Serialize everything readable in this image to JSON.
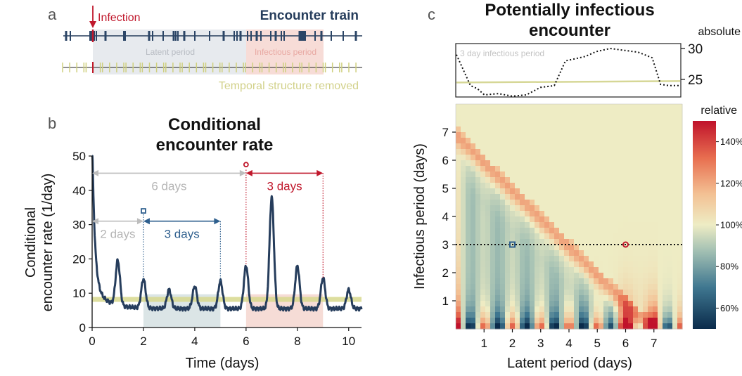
{
  "panel_a": {
    "letter": "a",
    "infection_label": "Infection",
    "train_label": "Encounter train",
    "latent_label": "Latent period",
    "infectious_label": "Infectious period",
    "removed_label": "Temporal structure removed",
    "colors": {
      "navy": "#263d5c",
      "red": "#c0182c",
      "olive": "#d6d796",
      "gray_band": "#e6e9ee",
      "pink_band": "#f6dcd8"
    }
  },
  "panel_b": {
    "letter": "b",
    "title_line1": "Conditional",
    "title_line2": "encounter rate",
    "ylabel_line1": "Conditional",
    "ylabel_line2": "encounter rate (1/day)",
    "xlabel": "Time (days)",
    "ann_6days": "6 days",
    "ann_2days": "2 days",
    "ann_3days_blue": "3 days",
    "ann_3days_red": "3 days"
  },
  "panel_c": {
    "letter": "c",
    "title_line1": "Potentially infectious",
    "title_line2": "encounter",
    "absolute_label": "absolute",
    "inset_label": "3 day infectious period",
    "relative_label": "relative",
    "xlabel": "Latent period (days)",
    "ylabel": "Infectious period (days)",
    "colorbar_ticks": [
      "140%",
      "120%",
      "100%",
      "80%",
      "60%"
    ]
  },
  "chart_data": [
    {
      "type": "line",
      "title": "Conditional encounter rate",
      "xlabel": "Time (days)",
      "ylabel": "Conditional encounter rate (1/day)",
      "xlim": [
        0,
        10.5
      ],
      "ylim": [
        0,
        50
      ],
      "x_ticks": [
        0,
        2,
        4,
        6,
        8,
        10
      ],
      "y_ticks": [
        0,
        10,
        20,
        30,
        40,
        50
      ],
      "peaks": [
        {
          "x": 0,
          "y": 50
        },
        {
          "x": 1,
          "y": 18.5
        },
        {
          "x": 2,
          "y": 14
        },
        {
          "x": 3,
          "y": 11
        },
        {
          "x": 4,
          "y": 12
        },
        {
          "x": 5,
          "y": 13.5
        },
        {
          "x": 6,
          "y": 18
        },
        {
          "x": 7,
          "y": 38
        },
        {
          "x": 8,
          "y": 18
        },
        {
          "x": 9,
          "y": 14.5
        },
        {
          "x": 10,
          "y": 11
        }
      ],
      "baseline": 5.5,
      "uniform_rate": 8.2,
      "intervals": [
        {
          "label": "6 days",
          "from": 0,
          "to": 6
        },
        {
          "label": "2 days",
          "from": 0,
          "to": 2
        },
        {
          "label": "3 days",
          "from": 2,
          "to": 5
        },
        {
          "label": "3 days",
          "from": 6,
          "to": 9
        }
      ]
    },
    {
      "type": "line",
      "title": "Potentially infectious encounter (absolute)",
      "series_label": "3 day infectious period",
      "x_range": [
        0,
        8
      ],
      "y_ticks": [
        25,
        30
      ],
      "points_x": [
        0,
        0.5,
        0.75,
        1,
        1.5,
        2,
        2.5,
        3,
        3.5,
        3.9,
        4.2,
        4.6,
        5,
        5.5,
        6,
        6.5,
        7,
        7.3,
        7.6,
        8
      ],
      "points_y": [
        29,
        24,
        23.5,
        22.5,
        22.7,
        22.3,
        22.5,
        23.7,
        24,
        28,
        28.3,
        28.7,
        29.5,
        30,
        29.7,
        29.4,
        28.5,
        24.2,
        24,
        24
      ],
      "reference_y": 24.5
    },
    {
      "type": "heatmap",
      "xlabel": "Latent period (days)",
      "ylabel": "Infectious period (days)",
      "x_ticks": [
        1,
        2,
        3,
        4,
        5,
        6,
        7
      ],
      "y_ticks": [
        1,
        2,
        3,
        4,
        5,
        6,
        7
      ],
      "colorbar_label": "relative",
      "colorbar_range": [
        50,
        150
      ],
      "markers": [
        {
          "x": 2,
          "y": 3,
          "color": "#2e5f8e"
        },
        {
          "x": 6,
          "y": 3,
          "color": "#c0182c"
        }
      ],
      "dotted_line_y": 3
    }
  ]
}
